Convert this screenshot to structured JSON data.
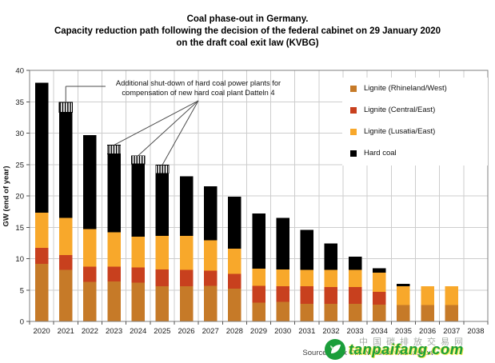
{
  "title": {
    "line1": "Coal phase-out in Germany.",
    "line2": "Capacity reduction path following the decision of the federal cabinet on 29 January 2020",
    "line3": "on the draft coal exit law (KVBG)"
  },
  "annotation": {
    "line1": "Additional shut-down of hard coal power plants for",
    "line2": "compensation of new hard coal plant Datteln 4"
  },
  "source": "Source: Felix Chr. Matthes/Öko-Institut",
  "watermark": {
    "site": "tanpaifang.com",
    "cjk": "中国碳排放交易网",
    "green": "#1b9e3b"
  },
  "chart_data": {
    "type": "bar",
    "stacked": true,
    "title": "Coal phase-out in Germany. Capacity reduction path following the decision of the federal cabinet on 29 January 2020 on the draft coal exit law (KVBG)",
    "xlabel": "",
    "ylabel": "GW (end of year)",
    "ylim": [
      0,
      40
    ],
    "ytick_step": 5,
    "grid": true,
    "legend_position": "top-right-inside",
    "categories": [
      2020,
      2021,
      2022,
      2023,
      2024,
      2025,
      2026,
      2027,
      2028,
      2029,
      2030,
      2031,
      2032,
      2033,
      2034,
      2035,
      2036,
      2037,
      2038
    ],
    "series": [
      {
        "name": "Lignite (Rhineland/West)",
        "color": "#c67a28",
        "values": [
          9.2,
          8.2,
          6.3,
          6.4,
          6.2,
          5.6,
          5.6,
          5.7,
          5.2,
          3.0,
          3.1,
          2.8,
          2.8,
          2.8,
          2.7,
          2.6,
          2.6,
          2.6,
          0
        ]
      },
      {
        "name": "Lignite (Central/East)",
        "color": "#c8401e",
        "values": [
          2.5,
          2.4,
          2.4,
          2.3,
          2.4,
          2.7,
          2.6,
          2.4,
          2.4,
          2.7,
          2.5,
          2.8,
          2.7,
          2.7,
          2.0,
          0,
          0,
          0,
          0
        ]
      },
      {
        "name": "Lignite (Lusatia/East)",
        "color": "#f8a82b",
        "values": [
          5.6,
          5.9,
          6.0,
          5.5,
          4.9,
          5.3,
          5.4,
          4.8,
          4.0,
          2.7,
          2.7,
          2.6,
          2.7,
          2.7,
          3.1,
          3.0,
          3.0,
          3.0,
          0
        ]
      },
      {
        "name": "Hard coal",
        "color": "#000000",
        "values": [
          20.7,
          16.8,
          15.0,
          12.5,
          11.6,
          10.0,
          9.5,
          8.6,
          8.3,
          8.8,
          8.2,
          6.4,
          4.2,
          2.1,
          0.7,
          0.4,
          0,
          0,
          0
        ]
      },
      {
        "name": "Additional shut-down of hard coal (compensation of Datteln 4)",
        "pattern": "vertical-hatch",
        "values": [
          0,
          1.6,
          0,
          1.4,
          1.3,
          1.3,
          0,
          0,
          0,
          0,
          0,
          0,
          0,
          0,
          0,
          0,
          0,
          0,
          0
        ]
      }
    ]
  }
}
